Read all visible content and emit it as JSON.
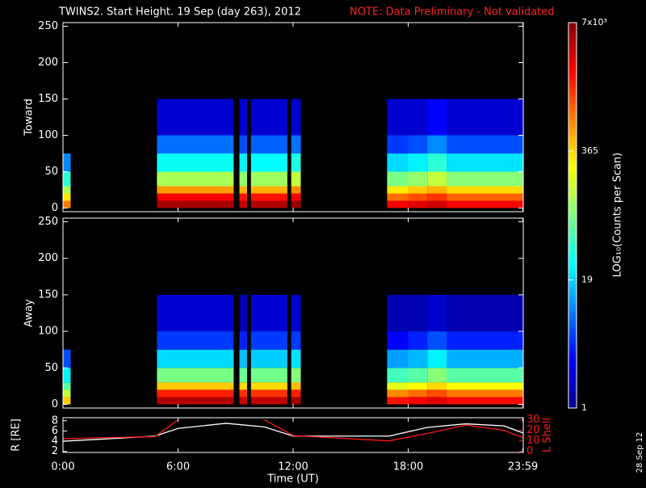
{
  "title": "TWINS2. Start Height. 19 Sep (day 263), 2012",
  "note": "NOTE: Data Preliminary - Not validated",
  "date": "28 Sep 12",
  "colorbar": {
    "lim": [
      1,
      7000
    ],
    "log": true,
    "ticks": [
      1,
      19,
      365,
      {
        "value": 7000,
        "label": "7x10³"
      }
    ],
    "label": "LOG₁₀(Counts per Scan)"
  },
  "chart_data": [
    {
      "type": "heatmap",
      "y_label": "Toward",
      "ylim": [
        -5,
        255
      ],
      "yticks": [
        0,
        50,
        100,
        150,
        200,
        250
      ],
      "x_edges": [
        0,
        0.4,
        4.9,
        8.9,
        9.2,
        9.6,
        9.8,
        11.7,
        11.9,
        12.4,
        16.9,
        18,
        19,
        20,
        24
      ],
      "y_edges": [
        0,
        10,
        20,
        30,
        50,
        75,
        100,
        150
      ],
      "z": [
        [
          800,
          null,
          5000,
          null,
          4000,
          null,
          4500,
          null,
          5500,
          null,
          2500,
          3000,
          3500,
          2500
        ],
        [
          300,
          null,
          2500,
          null,
          2000,
          null,
          2000,
          null,
          2500,
          null,
          900,
          1200,
          1500,
          1000
        ],
        [
          120,
          null,
          600,
          null,
          500,
          null,
          500,
          null,
          700,
          null,
          300,
          400,
          500,
          350
        ],
        [
          40,
          null,
          120,
          null,
          100,
          null,
          110,
          null,
          150,
          null,
          80,
          100,
          150,
          90
        ],
        [
          10,
          null,
          30,
          null,
          25,
          null,
          28,
          null,
          35,
          null,
          20,
          25,
          40,
          22
        ],
        [
          null,
          null,
          8,
          null,
          6,
          null,
          7,
          null,
          8,
          null,
          5,
          6,
          10,
          6
        ],
        [
          null,
          null,
          2,
          null,
          2,
          null,
          2,
          null,
          2,
          null,
          2,
          2,
          3,
          2
        ]
      ]
    },
    {
      "type": "heatmap",
      "y_label": "Away",
      "ylim": [
        -5,
        255
      ],
      "yticks": [
        0,
        50,
        100,
        150,
        200,
        250
      ],
      "x_edges": [
        0,
        0.4,
        4.9,
        8.9,
        9.2,
        9.6,
        9.8,
        11.7,
        11.9,
        12.4,
        16.9,
        18,
        19,
        20,
        24
      ],
      "y_edges": [
        0,
        10,
        20,
        30,
        50,
        75,
        100,
        150
      ],
      "z": [
        [
          400,
          null,
          4500,
          null,
          3500,
          null,
          4000,
          null,
          5000,
          null,
          2000,
          2500,
          3000,
          2200
        ],
        [
          150,
          null,
          1800,
          null,
          1500,
          null,
          1500,
          null,
          1800,
          null,
          700,
          900,
          1200,
          800
        ],
        [
          60,
          null,
          400,
          null,
          350,
          null,
          350,
          null,
          450,
          null,
          200,
          250,
          350,
          250
        ],
        [
          25,
          null,
          80,
          null,
          70,
          null,
          75,
          null,
          90,
          null,
          50,
          60,
          90,
          60
        ],
        [
          6,
          null,
          20,
          null,
          16,
          null,
          18,
          null,
          22,
          null,
          12,
          15,
          25,
          14
        ],
        [
          null,
          null,
          5,
          null,
          4,
          null,
          5,
          null,
          5,
          null,
          3,
          4,
          6,
          4
        ],
        [
          null,
          null,
          2,
          null,
          1.5,
          null,
          2,
          null,
          2,
          null,
          1.5,
          1.5,
          2,
          1.5
        ]
      ]
    },
    {
      "type": "line",
      "x_label": "Time (UT)",
      "y_label": "R [RE]",
      "y2_label": "L Shell",
      "xlim": [
        0,
        24
      ],
      "xticks": [
        {
          "value": 0,
          "label": "0:00"
        },
        {
          "value": 6,
          "label": "6:00"
        },
        {
          "value": 12,
          "label": "12:00"
        },
        {
          "value": 18,
          "label": "18:00"
        },
        {
          "value": 23.98,
          "label": "23:59"
        }
      ],
      "ylim": [
        1.8,
        8.6
      ],
      "yticks": [
        2,
        4,
        6,
        8
      ],
      "y2lim": [
        -1,
        32
      ],
      "y2ticks": [
        0,
        10,
        20,
        30
      ],
      "x": [
        0,
        2,
        4.8,
        6,
        8.5,
        10.5,
        12,
        14,
        17,
        19,
        21,
        23,
        24
      ],
      "series": [
        {
          "name": "R",
          "color": "#ffffff",
          "values": [
            4,
            4.4,
            5,
            6.5,
            7.5,
            6.8,
            5,
            5,
            5,
            6.7,
            7.4,
            7,
            5.6
          ]
        },
        {
          "name": "L Shell",
          "color": "#ff1a1a",
          "axis": "y2",
          "values": [
            12,
            13,
            14,
            30,
            null,
            30,
            15,
            13,
            10,
            17,
            25,
            20,
            13
          ]
        }
      ]
    }
  ]
}
